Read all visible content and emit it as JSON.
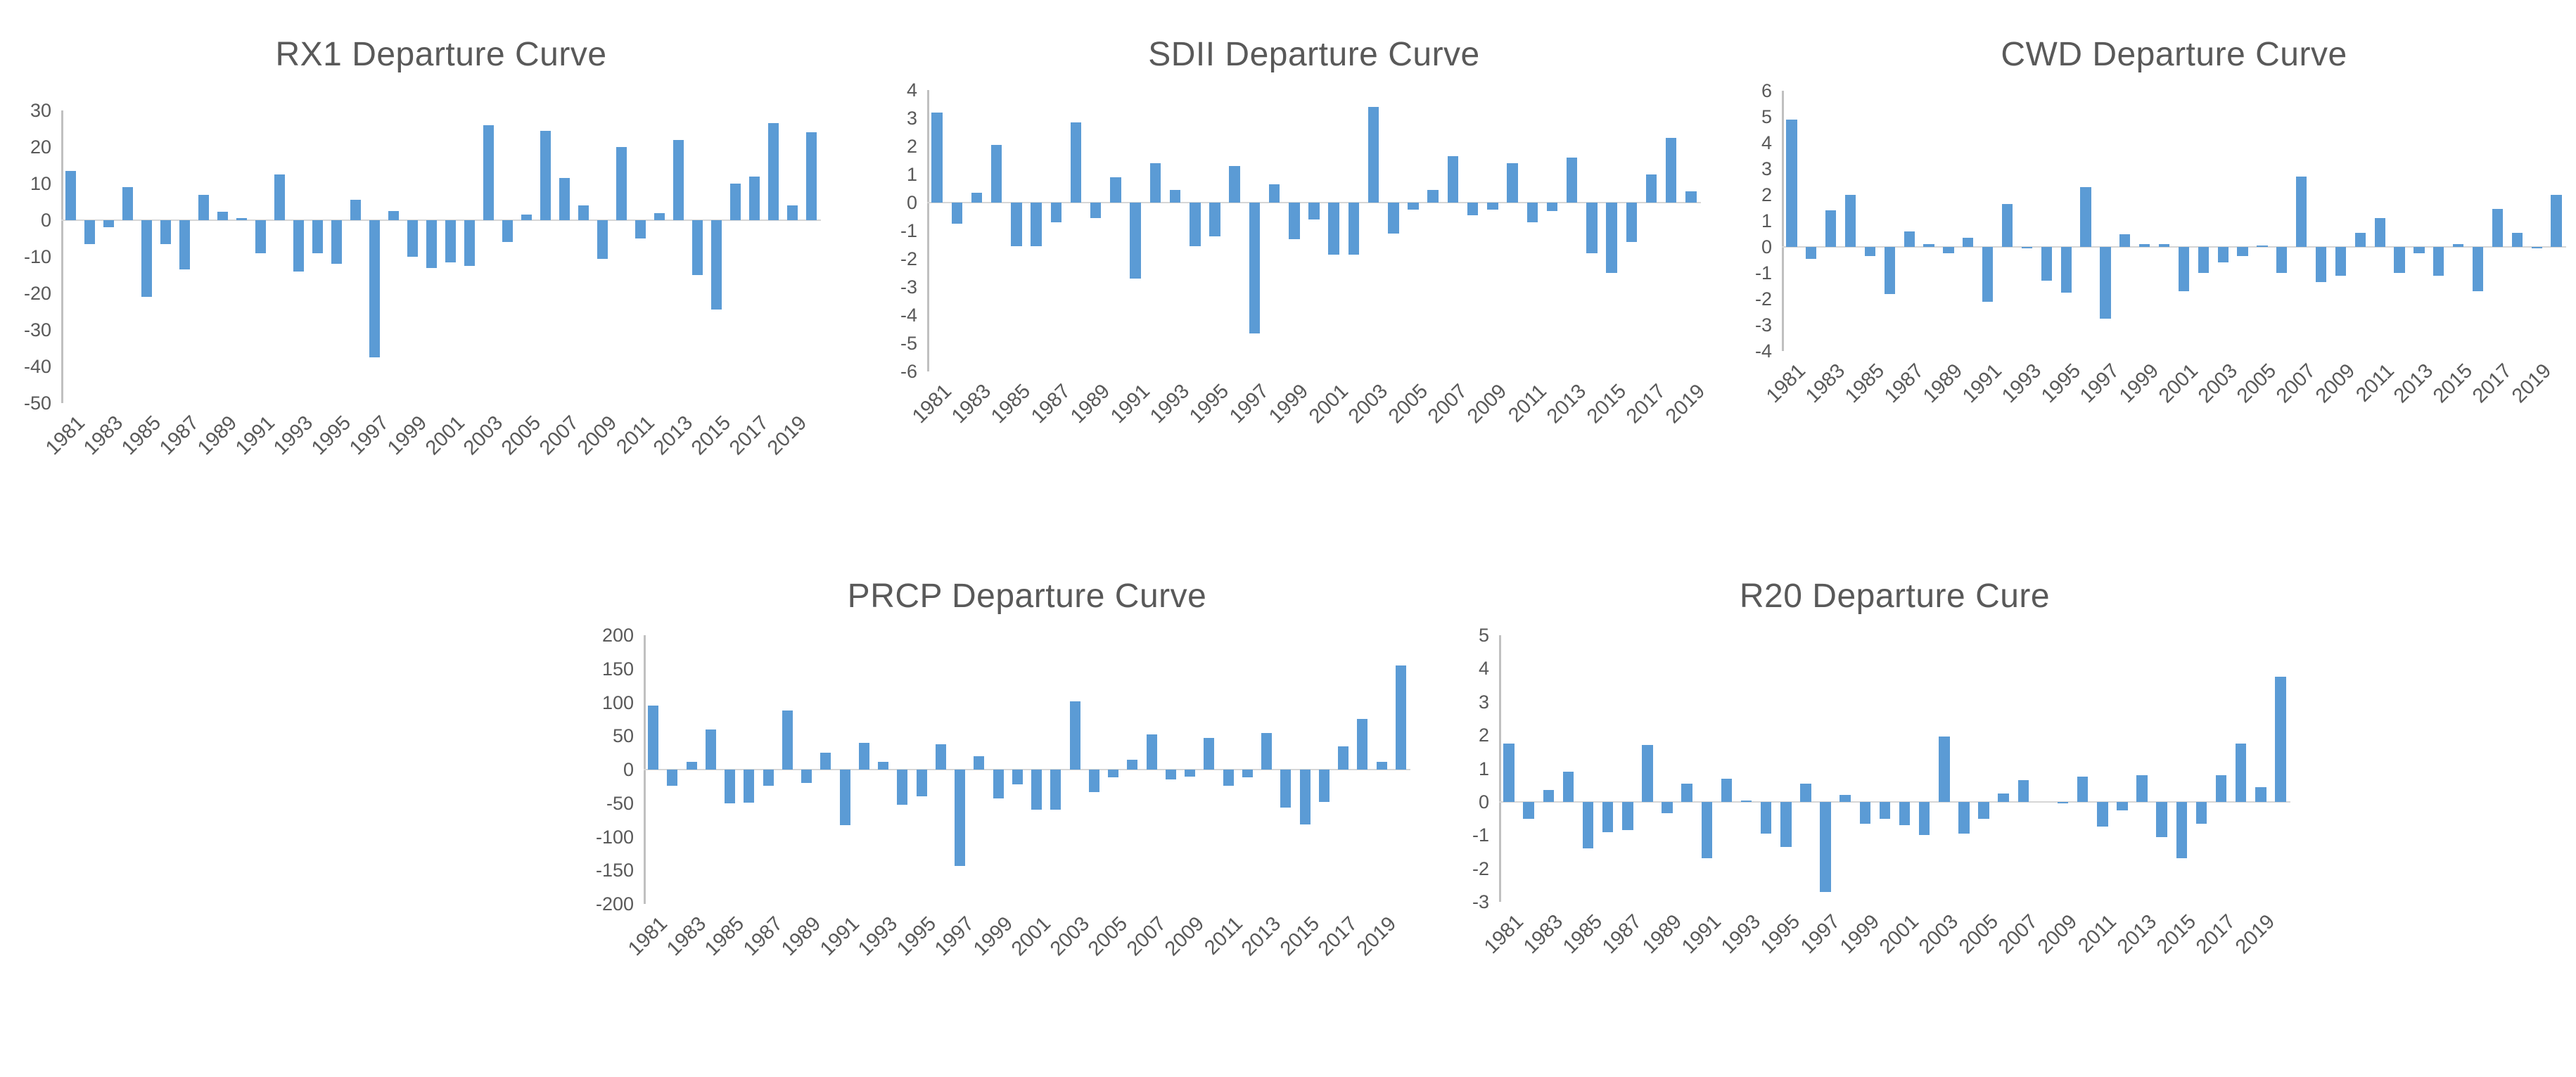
{
  "colors": {
    "bar": "#5B9BD5",
    "text": "#595959",
    "axis_line": "#C0C0C0",
    "zero_line": "#D6D6D6",
    "background": "#FFFFFF"
  },
  "chart_data": [
    {
      "id": "rx1",
      "type": "bar",
      "title": "RX1 Departure Curve",
      "bar_color": "#5B9BD5",
      "ylim": [
        -50,
        30
      ],
      "ytick_step": 10,
      "ytick_labels": [
        "30",
        "20",
        "10",
        "0",
        "-10",
        "-20",
        "-30",
        "-40",
        "-50"
      ],
      "xtick_labels": [
        "1981",
        "1983",
        "1985",
        "1987",
        "1989",
        "1991",
        "1993",
        "1995",
        "1997",
        "1999",
        "2001",
        "2003",
        "2005",
        "2007",
        "2009",
        "2011",
        "2013",
        "2015",
        "2017",
        "2019"
      ],
      "legend": null,
      "grid": false,
      "categories": [
        "1981",
        "1982",
        "1983",
        "1984",
        "1985",
        "1986",
        "1987",
        "1988",
        "1989",
        "1990",
        "1991",
        "1992",
        "1993",
        "1994",
        "1995",
        "1996",
        "1997",
        "1998",
        "1999",
        "2000",
        "2001",
        "2002",
        "2003",
        "2004",
        "2005",
        "2006",
        "2007",
        "2008",
        "2009",
        "2010",
        "2011",
        "2012",
        "2013",
        "2014",
        "2015",
        "2016",
        "2017",
        "2018",
        "2019",
        "2020"
      ],
      "values": [
        13.5,
        -6.5,
        -2,
        9,
        -21,
        -6.5,
        -13.5,
        7,
        2.3,
        0.5,
        -9,
        12.5,
        -14,
        -9,
        -12,
        5.5,
        -37.5,
        2.5,
        -10,
        -13,
        -11.5,
        -12.5,
        26,
        -6,
        1.5,
        24.5,
        11.5,
        4,
        -10.5,
        20,
        -5,
        2,
        22,
        -15,
        -24.5,
        10,
        12,
        26.5,
        4,
        24
      ]
    },
    {
      "id": "sdii",
      "type": "bar",
      "title": "SDII Departure Curve",
      "bar_color": "#5B9BD5",
      "ylim": [
        -6,
        4
      ],
      "ytick_step": 1,
      "ytick_labels": [
        "4",
        "3",
        "2",
        "1",
        "0",
        "-1",
        "-2",
        "-3",
        "-4",
        "-5",
        "-6"
      ],
      "xtick_labels": [
        "1981",
        "1983",
        "1985",
        "1987",
        "1989",
        "1991",
        "1993",
        "1995",
        "1997",
        "1999",
        "2001",
        "2003",
        "2005",
        "2007",
        "2009",
        "2011",
        "2013",
        "2015",
        "2017",
        "2019"
      ],
      "legend": null,
      "grid": false,
      "categories": [
        "1981",
        "1982",
        "1983",
        "1984",
        "1985",
        "1986",
        "1987",
        "1988",
        "1989",
        "1990",
        "1991",
        "1992",
        "1993",
        "1994",
        "1995",
        "1996",
        "1997",
        "1998",
        "1999",
        "2000",
        "2001",
        "2002",
        "2003",
        "2004",
        "2005",
        "2006",
        "2007",
        "2008",
        "2009",
        "2010",
        "2011",
        "2012",
        "2013",
        "2014",
        "2015",
        "2016",
        "2017",
        "2018",
        "2019"
      ],
      "values": [
        3.2,
        -0.75,
        0.35,
        2.05,
        -1.55,
        -1.55,
        -0.7,
        2.85,
        -0.55,
        0.9,
        -2.7,
        1.4,
        0.45,
        -1.55,
        -1.2,
        1.3,
        -4.65,
        0.65,
        -1.3,
        -0.6,
        -1.85,
        -1.85,
        3.4,
        -1.1,
        -0.25,
        0.45,
        1.65,
        -0.45,
        -0.25,
        1.4,
        -0.7,
        -0.3,
        1.6,
        -1.8,
        -2.5,
        -1.4,
        1.0,
        2.3,
        0.4
      ]
    },
    {
      "id": "cwd",
      "type": "bar",
      "title": "CWD Departure Curve",
      "bar_color": "#5B9BD5",
      "ylim": [
        -4,
        6
      ],
      "ytick_step": 1,
      "ytick_labels": [
        "6",
        "5",
        "4",
        "3",
        "2",
        "1",
        "0",
        "-1",
        "-2",
        "-3",
        "-4"
      ],
      "xtick_labels": [
        "1981",
        "1983",
        "1985",
        "1987",
        "1989",
        "1991",
        "1993",
        "1995",
        "1997",
        "1999",
        "2001",
        "2003",
        "2005",
        "2007",
        "2009",
        "2011",
        "2013",
        "2015",
        "2017",
        "2019"
      ],
      "legend": null,
      "grid": false,
      "categories": [
        "1981",
        "1982",
        "1983",
        "1984",
        "1985",
        "1986",
        "1987",
        "1988",
        "1989",
        "1990",
        "1991",
        "1992",
        "1993",
        "1994",
        "1995",
        "1996",
        "1997",
        "1998",
        "1999",
        "2000",
        "2001",
        "2002",
        "2003",
        "2004",
        "2005",
        "2006",
        "2007",
        "2008",
        "2009",
        "2010",
        "2011",
        "2012",
        "2013",
        "2014",
        "2015",
        "2016",
        "2017",
        "2018",
        "2019",
        "2020"
      ],
      "values": [
        4.9,
        -0.45,
        1.4,
        2.0,
        -0.35,
        -1.8,
        0.6,
        0.1,
        -0.25,
        0.35,
        -2.1,
        1.65,
        -0.05,
        -1.3,
        -1.75,
        2.3,
        -2.75,
        0.5,
        0.1,
        0.1,
        -1.7,
        -1.0,
        -0.6,
        -0.35,
        0.05,
        -1.0,
        2.7,
        -1.35,
        -1.1,
        0.55,
        1.1,
        -1.0,
        -0.25,
        -1.1,
        0.1,
        -1.7,
        1.45,
        0.55,
        -0.05,
        2.0
      ]
    },
    {
      "id": "prcp",
      "type": "bar",
      "title": "PRCP Departure Curve",
      "bar_color": "#5B9BD5",
      "ylim": [
        -200,
        200
      ],
      "ytick_step": 50,
      "ytick_labels": [
        "200",
        "150",
        "100",
        "50",
        "0",
        "-50",
        "-100",
        "-150",
        "-200"
      ],
      "xtick_labels": [
        "1981",
        "1983",
        "1985",
        "1987",
        "1989",
        "1991",
        "1993",
        "1995",
        "1997",
        "1999",
        "2001",
        "2003",
        "2005",
        "2007",
        "2009",
        "2011",
        "2013",
        "2015",
        "2017",
        "2019"
      ],
      "legend": null,
      "grid": false,
      "categories": [
        "1981",
        "1982",
        "1983",
        "1984",
        "1985",
        "1986",
        "1987",
        "1988",
        "1989",
        "1990",
        "1991",
        "1992",
        "1993",
        "1994",
        "1995",
        "1996",
        "1997",
        "1998",
        "1999",
        "2000",
        "2001",
        "2002",
        "2003",
        "2004",
        "2005",
        "2006",
        "2007",
        "2008",
        "2009",
        "2010",
        "2011",
        "2012",
        "2013",
        "2014",
        "2015",
        "2016",
        "2017",
        "2018",
        "2019",
        "2020"
      ],
      "values": [
        95,
        -24,
        11,
        60,
        -50,
        -49,
        -24,
        88,
        -20,
        25,
        -83,
        40,
        11,
        -52,
        -40,
        38,
        -143,
        20,
        -43,
        -22,
        -60,
        -60,
        102,
        -34,
        -11,
        15,
        52,
        -15,
        -10,
        47,
        -24,
        -11,
        54,
        -57,
        -82,
        -48,
        35,
        75,
        11,
        155
      ]
    },
    {
      "id": "r20",
      "type": "bar",
      "title": "R20 Departure Cure",
      "bar_color": "#5B9BD5",
      "ylim": [
        -3,
        5
      ],
      "ytick_step": 1,
      "ytick_labels": [
        "5",
        "4",
        "3",
        "2",
        "1",
        "0",
        "-1",
        "-2",
        "-3"
      ],
      "xtick_labels": [
        "1981",
        "1983",
        "1985",
        "1987",
        "1989",
        "1991",
        "1993",
        "1995",
        "1997",
        "1999",
        "2001",
        "2003",
        "2005",
        "2007",
        "2009",
        "2011",
        "2013",
        "2015",
        "2017",
        "2019"
      ],
      "legend": null,
      "grid": false,
      "categories": [
        "1981",
        "1982",
        "1983",
        "1984",
        "1985",
        "1986",
        "1987",
        "1988",
        "1989",
        "1990",
        "1991",
        "1992",
        "1993",
        "1994",
        "1995",
        "1996",
        "1997",
        "1998",
        "1999",
        "2000",
        "2001",
        "2002",
        "2003",
        "2004",
        "2005",
        "2006",
        "2007",
        "2008",
        "2009",
        "2010",
        "2011",
        "2012",
        "2013",
        "2014",
        "2015",
        "2016",
        "2017",
        "2018",
        "2019",
        "2020"
      ],
      "values": [
        1.75,
        -0.5,
        0.35,
        0.9,
        -1.4,
        -0.9,
        -0.85,
        1.7,
        -0.35,
        0.55,
        -1.7,
        0.7,
        0.05,
        -0.95,
        -1.35,
        0.55,
        -2.7,
        0.2,
        -0.65,
        -0.5,
        -0.7,
        -1.0,
        1.95,
        -0.95,
        -0.5,
        0.25,
        0.65,
        0,
        -0.05,
        0.75,
        -0.75,
        -0.25,
        0.8,
        -1.05,
        -1.7,
        -0.65,
        0.8,
        1.75,
        0.45,
        3.75
      ]
    }
  ]
}
